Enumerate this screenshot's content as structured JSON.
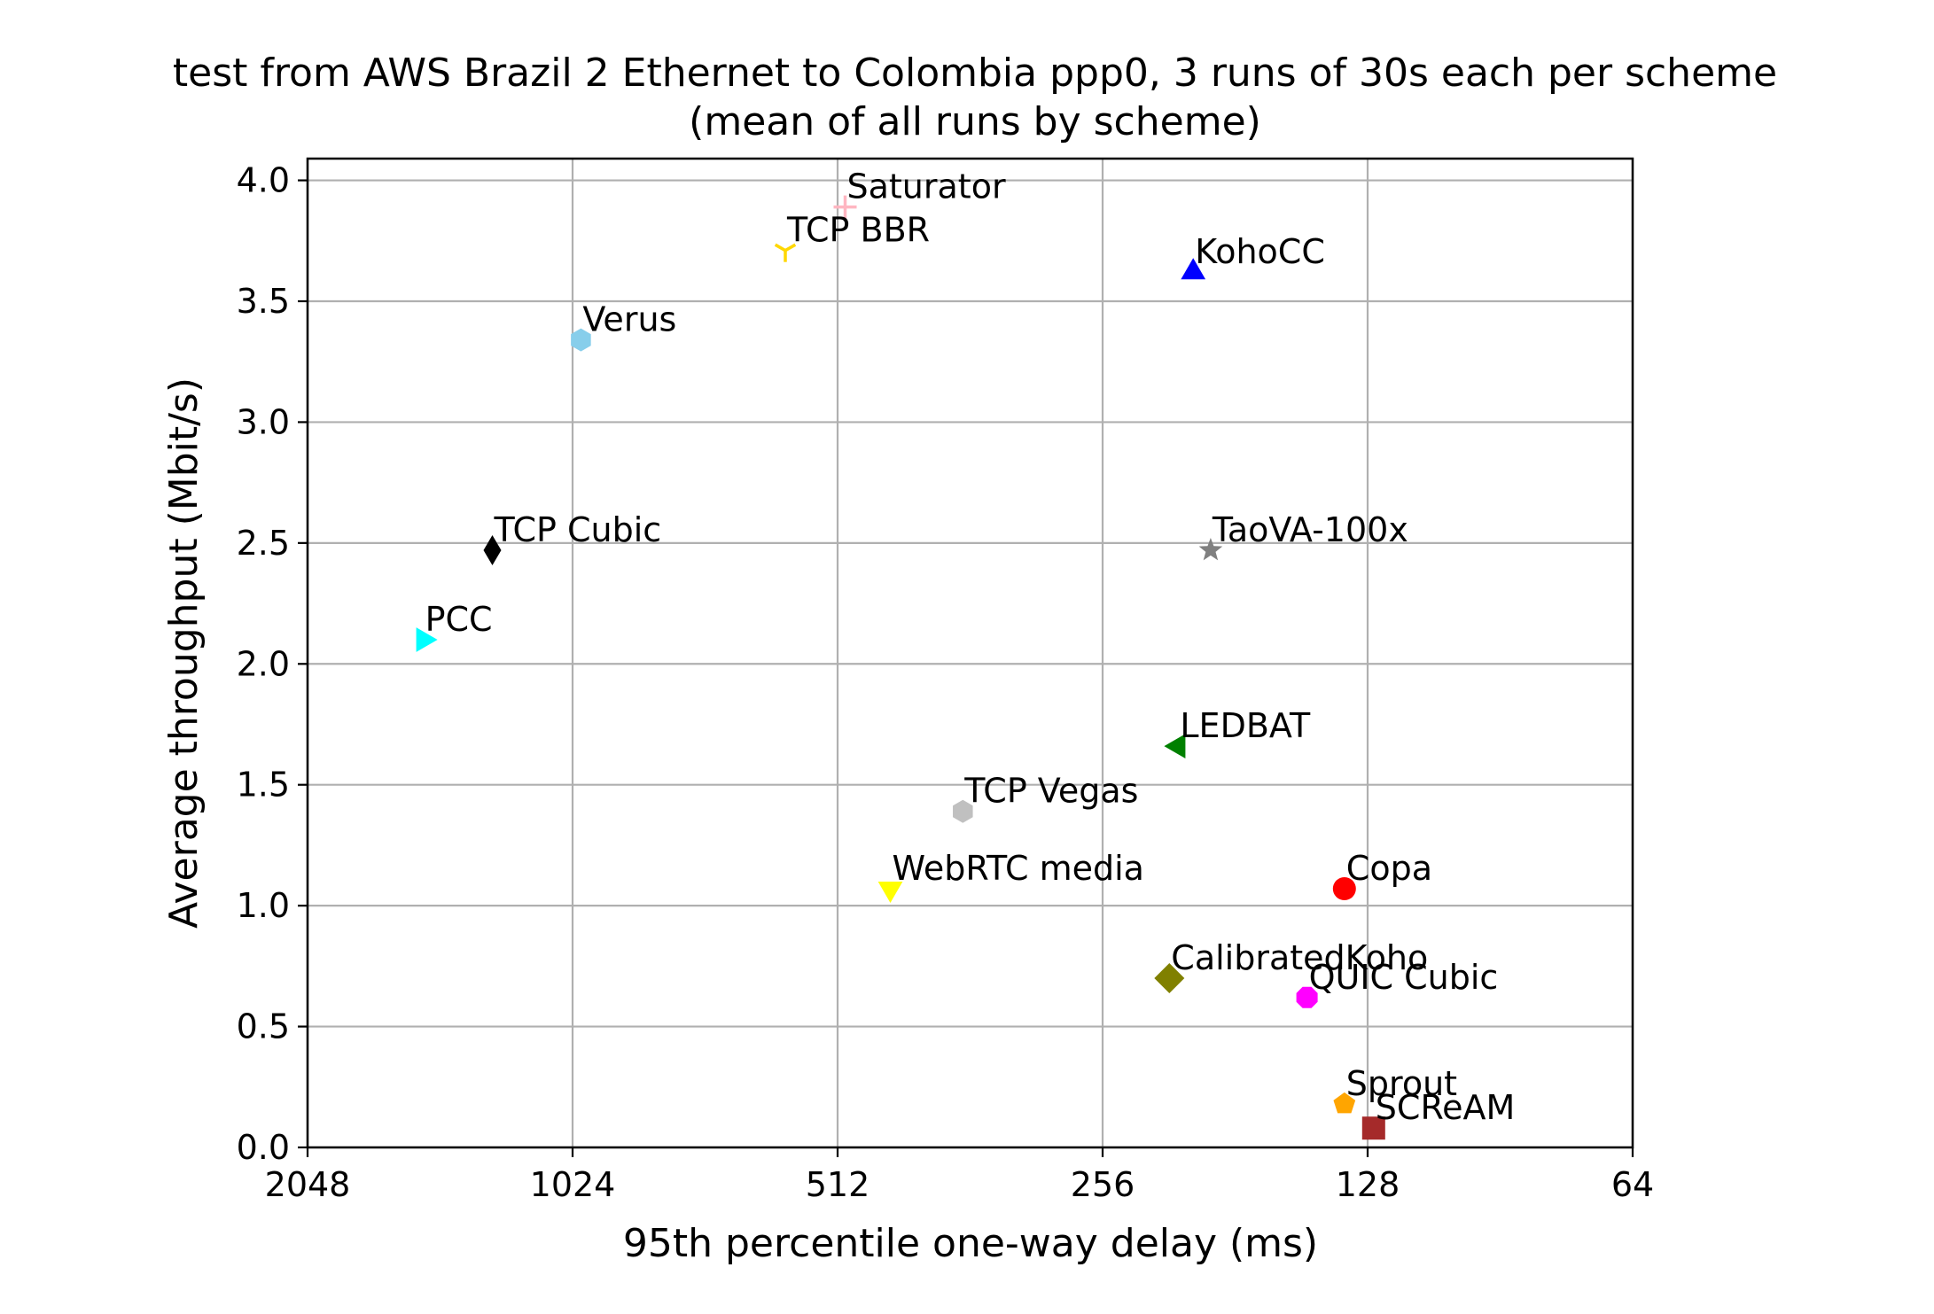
{
  "chart_data": {
    "type": "scatter",
    "title": "test from AWS Brazil 2 Ethernet to Colombia ppp0, 3 runs of 30s each per scheme",
    "subtitle": "(mean of all runs by scheme)",
    "xlabel": "95th percentile one-way delay (ms)",
    "ylabel": "Average throughput (Mbit/s)",
    "x_scale": "log2",
    "x_inverted": true,
    "xlim": [
      2048,
      64
    ],
    "ylim": [
      0.0,
      4.09
    ],
    "x_ticks": [
      2048,
      1024,
      512,
      256,
      128,
      64
    ],
    "x_tick_labels": [
      "2048",
      "1024",
      "512",
      "256",
      "128",
      "64"
    ],
    "y_ticks": [
      0.0,
      0.5,
      1.0,
      1.5,
      2.0,
      2.5,
      3.0,
      3.5,
      4.0
    ],
    "y_tick_labels": [
      "0.0",
      "0.5",
      "1.0",
      "1.5",
      "2.0",
      "2.5",
      "3.0",
      "3.5",
      "4.0"
    ],
    "grid": true,
    "series": [
      {
        "name": "Saturator",
        "x": 502,
        "y": 3.89,
        "marker": "plus",
        "color": "#ffb6c1"
      },
      {
        "name": "TCP BBR",
        "x": 587,
        "y": 3.71,
        "marker": "tri_down",
        "color": "#ffd700"
      },
      {
        "name": "KohoCC",
        "x": 202,
        "y": 3.62,
        "marker": "triangle_up",
        "color": "#0000ff"
      },
      {
        "name": "Verus",
        "x": 1002,
        "y": 3.34,
        "marker": "hexagon",
        "color": "#87ceeb"
      },
      {
        "name": "TCP Cubic",
        "x": 1263,
        "y": 2.47,
        "marker": "thin_diamond",
        "color": "#000000"
      },
      {
        "name": "TaoVA-100x",
        "x": 193,
        "y": 2.47,
        "marker": "star",
        "color": "#808080"
      },
      {
        "name": "PCC",
        "x": 1513,
        "y": 2.1,
        "marker": "triangle_right",
        "color": "#00ffff"
      },
      {
        "name": "LEDBAT",
        "x": 210,
        "y": 1.66,
        "marker": "triangle_left",
        "color": "#008000"
      },
      {
        "name": "TCP Vegas",
        "x": 369,
        "y": 1.39,
        "marker": "hexagon",
        "color": "#c0c0c0"
      },
      {
        "name": "WebRTC media",
        "x": 446,
        "y": 1.07,
        "marker": "triangle_down",
        "color": "#ffff00"
      },
      {
        "name": "Copa",
        "x": 136,
        "y": 1.07,
        "marker": "circle",
        "color": "#ff0000"
      },
      {
        "name": "CalibratedKoho",
        "x": 215,
        "y": 0.7,
        "marker": "diamond",
        "color": "#808000"
      },
      {
        "name": "QUIC Cubic",
        "x": 150,
        "y": 0.62,
        "marker": "octagon",
        "color": "#ff00ff"
      },
      {
        "name": "Sprout",
        "x": 136,
        "y": 0.18,
        "marker": "pentagon",
        "color": "#ffa500"
      },
      {
        "name": "SCReAM",
        "x": 126,
        "y": 0.08,
        "marker": "square",
        "color": "#a52a2a"
      }
    ]
  }
}
